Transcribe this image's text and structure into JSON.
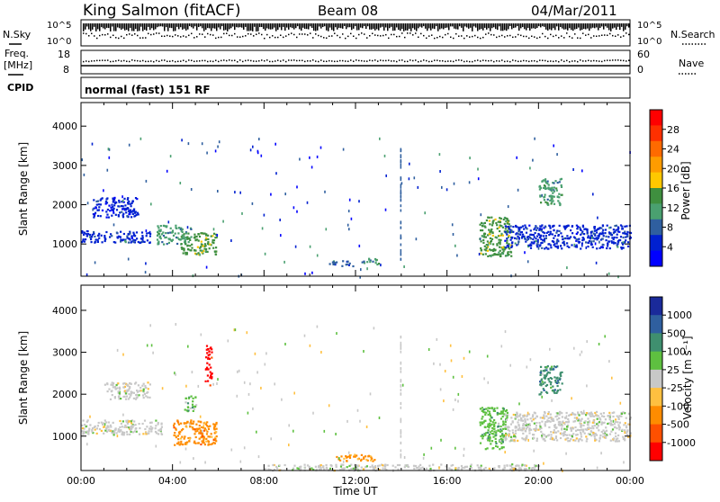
{
  "header": {
    "station": "King Salmon (fitACF)",
    "beam": "Beam 08",
    "date": "04/Mar/2011"
  },
  "aux_panels": {
    "nsky_label": "N.Sky",
    "nsky_ticks": [
      "10^5",
      "10^0"
    ],
    "nsearch_label": "N.Search",
    "nsearch_ticks": [
      "10^5",
      "10^0"
    ],
    "freq_label_top": "Freq.",
    "freq_label_bottom": "[MHz]",
    "freq_ticks": [
      "18",
      "8"
    ],
    "nave_label": "Nave",
    "nave_ticks": [
      "60",
      "0"
    ],
    "cpid_label": "CPID",
    "cpid_text": "normal (fast) 151 RF"
  },
  "axes": {
    "xlabel": "Time UT",
    "xticks": [
      "00:00",
      "04:00",
      "08:00",
      "12:00",
      "16:00",
      "20:00",
      "00:00"
    ],
    "ylabel": "Slant Range [km]",
    "yticks": [
      "1000",
      "2000",
      "3000",
      "4000"
    ],
    "xlim_hours": [
      0,
      24
    ],
    "ylim_km": [
      180,
      4600
    ]
  },
  "colorbars": {
    "power": {
      "label": "Power [dB]",
      "ticks": [
        "28",
        "24",
        "20",
        "16",
        "12",
        "8",
        "4"
      ],
      "colors": [
        "#ff0000",
        "#ff3000",
        "#ff6a00",
        "#ff9c00",
        "#ffc800",
        "#3f8f3f",
        "#4aa070",
        "#2f5f9f",
        "#0020d0",
        "#0000ff"
      ]
    },
    "velocity": {
      "label": "Velocity [m s⁻¹]",
      "ticks": [
        "1000",
        "500",
        "100",
        "25",
        "-25",
        "-100",
        "-500",
        "-1000"
      ],
      "colors": [
        "#1a2a9a",
        "#2f5f9f",
        "#3f8f6f",
        "#5ec040",
        "#c8c8c8",
        "#ffc040",
        "#ff8c00",
        "#ff5000",
        "#ff0000"
      ]
    }
  },
  "chart_data": [
    {
      "type": "heatmap",
      "title": "Power [dB]",
      "xlabel": "Time UT",
      "ylabel": "Slant Range [km]",
      "x_unit": "hours UT",
      "y_unit": "km",
      "xlim": [
        0,
        24
      ],
      "ylim": [
        180,
        4600
      ],
      "scale": [
        0,
        30
      ],
      "regions": [
        {
          "t0": 0.0,
          "t1": 3.0,
          "r0": 1050,
          "r1": 1350,
          "value": 6
        },
        {
          "t0": 0.5,
          "t1": 2.5,
          "r0": 1700,
          "r1": 2200,
          "value": 4
        },
        {
          "t0": 3.3,
          "t1": 4.8,
          "r0": 1000,
          "r1": 1500,
          "value": 10
        },
        {
          "t0": 4.3,
          "t1": 5.9,
          "r0": 750,
          "r1": 1300,
          "value": 14
        },
        {
          "t0": 10.8,
          "t1": 11.9,
          "r0": 450,
          "r1": 600,
          "value": 8
        },
        {
          "t0": 12.2,
          "t1": 13.0,
          "r0": 500,
          "r1": 650,
          "value": 10
        },
        {
          "t0": 17.4,
          "t1": 18.8,
          "r0": 700,
          "r1": 1700,
          "value": 14
        },
        {
          "t0": 18.5,
          "t1": 24.0,
          "r0": 900,
          "r1": 1500,
          "value": 6
        },
        {
          "t0": 20.0,
          "t1": 21.0,
          "r0": 2000,
          "r1": 2700,
          "value": 10
        }
      ]
    },
    {
      "type": "heatmap",
      "title": "Velocity [m s⁻¹]",
      "xlabel": "Time UT",
      "ylabel": "Slant Range [km]",
      "x_unit": "hours UT",
      "y_unit": "km",
      "xlim": [
        0,
        24
      ],
      "ylim": [
        180,
        4600
      ],
      "scale": [
        -1000,
        1000
      ],
      "regions": [
        {
          "t0": 0.0,
          "t1": 3.5,
          "r0": 1050,
          "r1": 1400,
          "value": 0
        },
        {
          "t0": 1.0,
          "t1": 3.0,
          "r0": 1900,
          "r1": 2300,
          "value": 0
        },
        {
          "t0": 4.0,
          "t1": 5.9,
          "r0": 800,
          "r1": 1400,
          "value": -400
        },
        {
          "t0": 4.5,
          "t1": 5.0,
          "r0": 1600,
          "r1": 2000,
          "value": 250
        },
        {
          "t0": 5.4,
          "t1": 5.7,
          "r0": 2200,
          "r1": 3200,
          "value": -1000
        },
        {
          "t0": 11.0,
          "t1": 12.8,
          "r0": 420,
          "r1": 580,
          "value": -400
        },
        {
          "t0": 17.4,
          "t1": 18.6,
          "r0": 700,
          "r1": 1700,
          "value": 300
        },
        {
          "t0": 18.5,
          "t1": 24.0,
          "r0": 900,
          "r1": 1600,
          "value": 0
        },
        {
          "t0": 20.0,
          "t1": 21.0,
          "r0": 2000,
          "r1": 2700,
          "value": 500
        },
        {
          "t0": 8.0,
          "t1": 20.0,
          "r0": 200,
          "r1": 350,
          "value": 60
        }
      ]
    }
  ]
}
